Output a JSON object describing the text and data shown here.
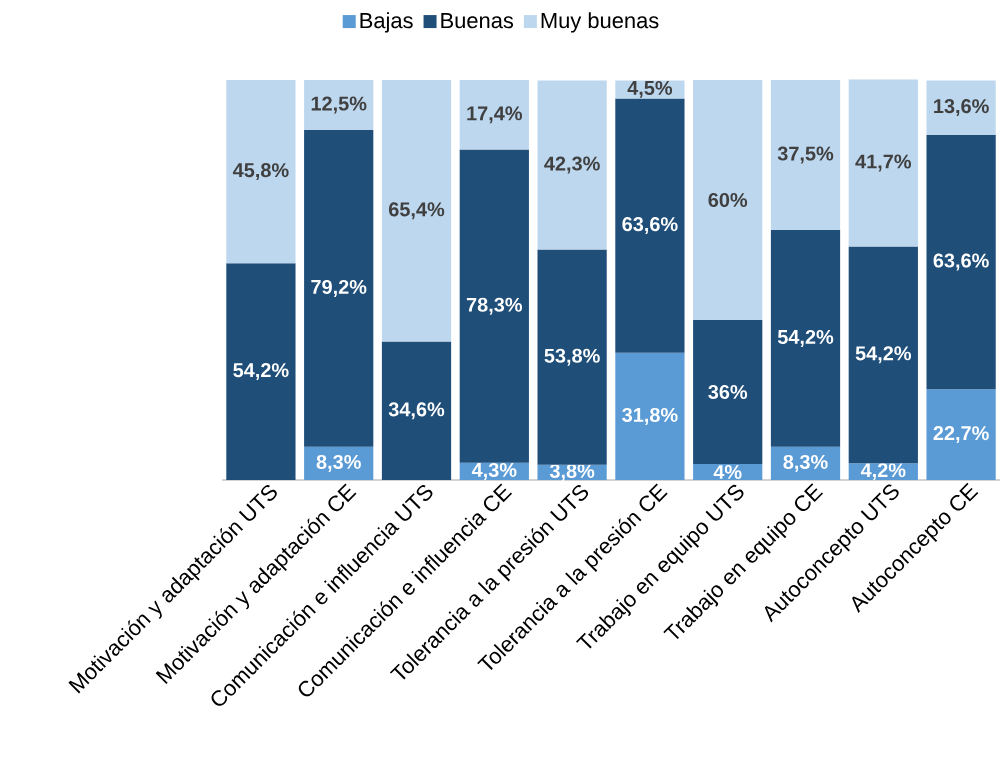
{
  "chart_data": {
    "type": "bar",
    "stacked": true,
    "legend": "top",
    "ylim": [
      0,
      100
    ],
    "categories": [
      "Motivación y adaptación UTS",
      "Motivación y adaptación CE",
      "Comunicación e influencia UTS",
      "Comunicación e influencia CE",
      "Tolerancia a la presión UTS",
      "Tolerancia a la presión CE",
      "Trabajo en equipo UTS",
      "Trabajo en equipo CE",
      "Autoconcepto UTS",
      "Autoconcepto CE"
    ],
    "series": [
      {
        "name": "Bajas",
        "color": "#5b9bd5",
        "values": [
          null,
          8.3,
          null,
          4.3,
          3.8,
          31.8,
          4,
          8.3,
          4.2,
          22.7
        ],
        "value_labels": [
          null,
          "8,3%",
          null,
          "4,3%",
          "3,8%",
          "31,8%",
          "4%",
          "8,3%",
          "4,2%",
          "22,7%"
        ]
      },
      {
        "name": "Buenas",
        "color": "#1f4e79",
        "values": [
          54.2,
          79.2,
          34.6,
          78.3,
          53.8,
          63.6,
          36,
          54.2,
          54.2,
          63.6
        ],
        "value_labels": [
          "54,2%",
          "79,2%",
          "34,6%",
          "78,3%",
          "53,8%",
          "63,6%",
          "36%",
          "54,2%",
          "54,2%",
          "63,6%"
        ]
      },
      {
        "name": "Muy buenas",
        "color": "#bdd7ee",
        "values": [
          45.8,
          12.5,
          65.4,
          17.4,
          42.3,
          4.5,
          60,
          37.5,
          41.7,
          13.6
        ],
        "value_labels": [
          "45,8%",
          "12,5%",
          "65,4%",
          "17,4%",
          "42,3%",
          "4,5%",
          "60%",
          "37,5%",
          "41,7%",
          "13,6%"
        ]
      }
    ]
  }
}
